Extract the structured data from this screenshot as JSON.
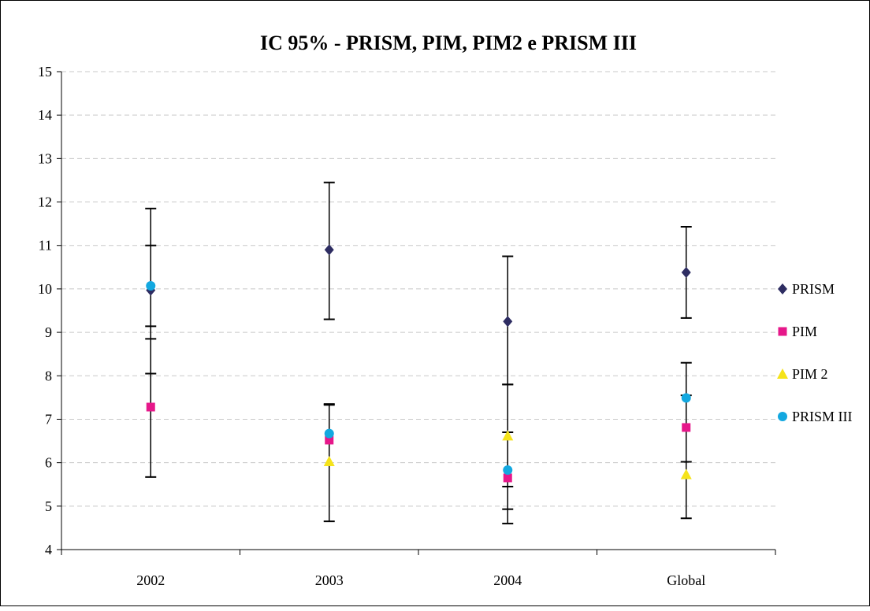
{
  "chart_data": {
    "type": "scatter",
    "title": "IC 95% - PRISM, PIM, PIM2 e PRISM III",
    "xlabel": "",
    "ylabel": "",
    "categories": [
      "2002",
      "2003",
      "2004",
      "Global"
    ],
    "ylim": [
      4,
      15
    ],
    "yticks": [
      4,
      5,
      6,
      7,
      8,
      9,
      10,
      11,
      12,
      13,
      14,
      15
    ],
    "grid": true,
    "legend_position": "right",
    "series": [
      {
        "name": "PRISM",
        "marker": "diamond",
        "color": "#2e2d62",
        "values": [
          9.97,
          10.9,
          9.25,
          10.38
        ],
        "error_low": [
          8.85,
          9.3,
          7.8,
          9.33
        ],
        "error_high": [
          11.85,
          12.45,
          10.75,
          11.43
        ]
      },
      {
        "name": "PIM",
        "marker": "square",
        "color": "#e6178a",
        "values": [
          7.28,
          6.52,
          5.65,
          6.81
        ],
        "error_low": [
          5.67,
          4.65,
          4.6,
          4.72
        ],
        "error_high": [
          9.14,
          7.35,
          6.7,
          8.3
        ]
      },
      {
        "name": "PIM 2",
        "marker": "triangle",
        "color": "#f5e31a",
        "values": [
          null,
          6.03,
          6.62,
          5.73
        ],
        "error_low": [
          null,
          null,
          5.45,
          null
        ],
        "error_high": [
          null,
          null,
          7.8,
          null
        ]
      },
      {
        "name": "PRISM III",
        "marker": "circle",
        "color": "#13a8e0",
        "values": [
          10.07,
          6.67,
          5.83,
          7.49
        ],
        "error_low": [
          8.05,
          null,
          4.93,
          6.02
        ],
        "error_high": [
          11.0,
          7.33,
          null,
          7.55
        ]
      }
    ]
  }
}
